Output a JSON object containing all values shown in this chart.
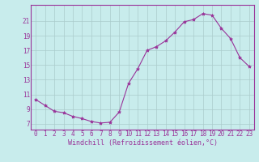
{
  "x": [
    0,
    1,
    2,
    3,
    4,
    5,
    6,
    7,
    8,
    9,
    10,
    11,
    12,
    13,
    14,
    15,
    16,
    17,
    18,
    19,
    20,
    21,
    22,
    23
  ],
  "y": [
    10.3,
    9.5,
    8.7,
    8.5,
    8.0,
    7.7,
    7.3,
    7.1,
    7.2,
    8.6,
    12.5,
    14.5,
    17.0,
    17.5,
    18.3,
    19.5,
    20.9,
    21.2,
    22.0,
    21.8,
    20.0,
    18.6,
    16.0,
    14.8
  ],
  "line_color": "#993399",
  "bg_color": "#c8ecec",
  "plot_bg": "#c8ecec",
  "grid_color": "#aacccc",
  "xlabel": "Windchill (Refroidissement éolien,°C)",
  "ylabel_ticks": [
    7,
    9,
    11,
    13,
    15,
    17,
    19,
    21
  ],
  "ylim": [
    6.2,
    23.2
  ],
  "xlim": [
    -0.5,
    23.5
  ],
  "xticks": [
    0,
    1,
    2,
    3,
    4,
    5,
    6,
    7,
    8,
    9,
    10,
    11,
    12,
    13,
    14,
    15,
    16,
    17,
    18,
    19,
    20,
    21,
    22,
    23
  ],
  "tick_fontsize": 5.5,
  "xlabel_fontsize": 6.0
}
